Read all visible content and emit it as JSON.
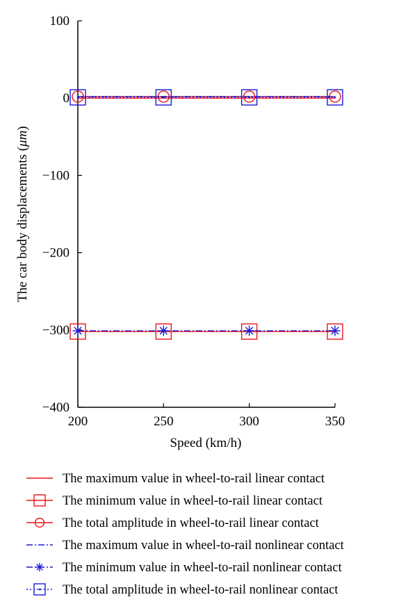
{
  "chart_data": {
    "type": "line",
    "xlabel": "Speed (km/h)",
    "ylabel_prefix": "The car body displacements (",
    "ylabel_unit": "μm",
    "ylabel_suffix": ")",
    "x": [
      200,
      250,
      300,
      350
    ],
    "xlim": [
      200,
      350
    ],
    "ylim": [
      -400,
      100
    ],
    "xticks": [
      200,
      250,
      300,
      350
    ],
    "yticks": [
      100,
      0,
      -100,
      -200,
      -300,
      -400
    ],
    "ytick_labels": [
      "100",
      "0",
      "−100",
      "−200",
      "−300",
      "−400"
    ],
    "grid": false,
    "legend_position": "below",
    "series": [
      {
        "name": "The maximum value in wheel-to-rail linear contact",
        "values": [
          0,
          0,
          0,
          0
        ],
        "color": "#e8141b",
        "dash": "solid",
        "marker": "none"
      },
      {
        "name": "The minimum value in wheel-to-rail linear contact",
        "values": [
          -302,
          -302,
          -302,
          -302
        ],
        "color": "#e8141b",
        "dash": "solid",
        "marker": "square"
      },
      {
        "name": "The total amplitude in wheel-to-rail linear contact",
        "values": [
          2,
          2,
          2,
          2
        ],
        "color": "#e8141b",
        "dash": "solid",
        "marker": "circle"
      },
      {
        "name": "The maximum value in wheel-to-rail nonlinear contact",
        "values": [
          2,
          2,
          2,
          2
        ],
        "color": "#1a1adb",
        "dash": "dashdot",
        "marker": "none"
      },
      {
        "name": "The minimum value in wheel-to-rail nonlinear contact",
        "values": [
          -301,
          -301,
          -301,
          -301
        ],
        "color": "#1a1adb",
        "dash": "dashdot",
        "marker": "asterisk"
      },
      {
        "name": "The total amplitude in wheel-to-rail nonlinear contact",
        "values": [
          1,
          1,
          1,
          1
        ],
        "color": "#1a1adb",
        "dash": "dotted",
        "marker": "dotted-square"
      }
    ]
  }
}
